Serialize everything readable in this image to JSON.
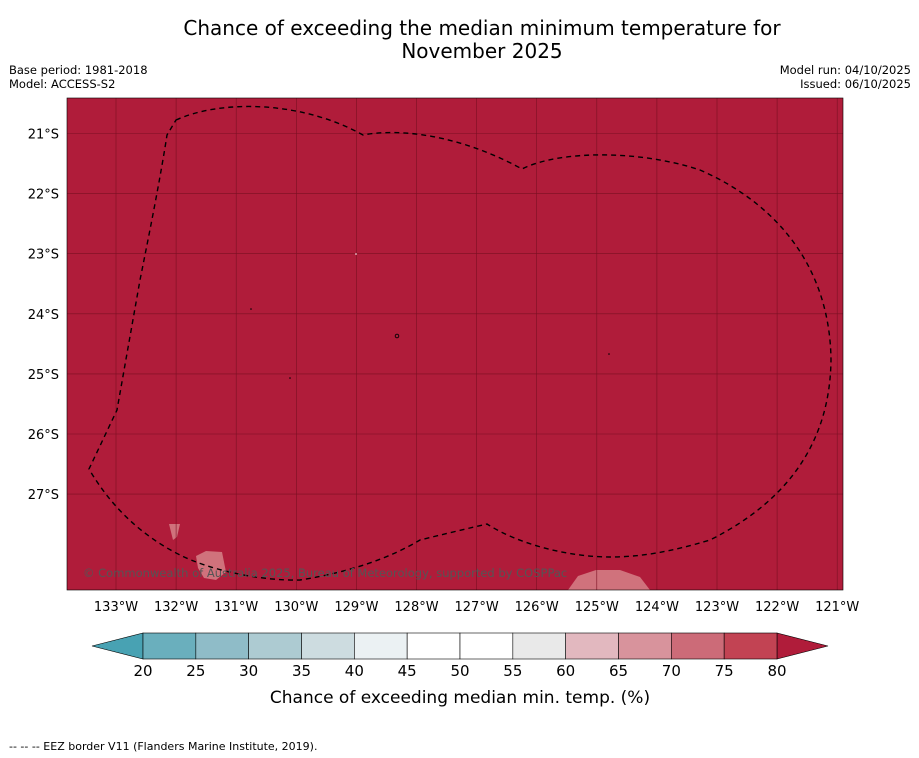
{
  "title_line1": "Chance of exceeding the median minimum temperature for",
  "title_line2": "November 2025",
  "base_period": "Base period: 1981-2018",
  "model": "Model: ACCESS-S2",
  "model_run": "Model run: 04/10/2025",
  "issued": "Issued: 06/10/2025",
  "copyright": "© Commonwealth of Australia 2025, Bureau of Meteorology, supported by COSPPac",
  "footer": "--  --  -- EEZ border V11 (Flanders Marine Institute, 2019).",
  "colors": {
    "map_fill": "#b01c3a",
    "grid": "#7a0f22"
  },
  "map": {
    "lat_labels": [
      "21°S",
      "22°S",
      "23°S",
      "24°S",
      "25°S",
      "26°S",
      "27°S"
    ],
    "lon_labels": [
      "133°W",
      "132°W",
      "131°W",
      "130°W",
      "129°W",
      "128°W",
      "127°W",
      "126°W",
      "125°W",
      "124°W",
      "123°W",
      "122°W",
      "121°W"
    ]
  },
  "colorbar": {
    "label": "Chance of exceeding median min. temp. (%)",
    "ticks": [
      "20",
      "25",
      "30",
      "35",
      "40",
      "45",
      "50",
      "55",
      "60",
      "65",
      "70",
      "75",
      "80"
    ],
    "colors": [
      "#6aafbd",
      "#8fbcc8",
      "#adcbd2",
      "#cddce0",
      "#ebf1f3",
      "#ffffff",
      "#ffffff",
      "#e9e9e9",
      "#e2b8bf",
      "#d8939c",
      "#cc6b78",
      "#c24353"
    ],
    "low_extend_color": "#48a2b3",
    "high_extend_color": "#b01c3a"
  }
}
